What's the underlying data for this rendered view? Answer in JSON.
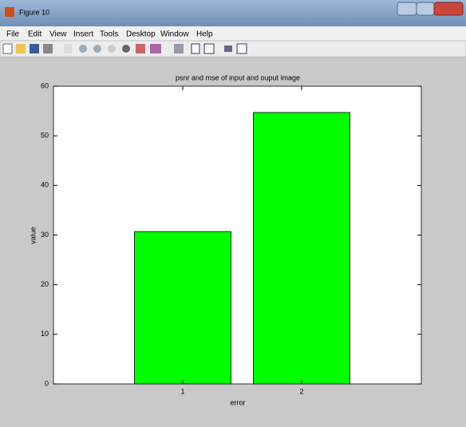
{
  "window": {
    "title": "Figure 10",
    "menu": [
      "File",
      "Edit",
      "View",
      "Insert",
      "Tools",
      "Desktop",
      "Window",
      "Help"
    ]
  },
  "chart_data": {
    "type": "bar",
    "title": "psnr and mse of input and ouput image",
    "x_label": "error",
    "y_label": "value",
    "categories": [
      "1",
      "2"
    ],
    "values": [
      30.7,
      54.7
    ],
    "color": "#00ff00",
    "ylim": [
      0,
      60
    ],
    "yticks": [
      0,
      10,
      20,
      30,
      40,
      50,
      60
    ],
    "grid": false
  }
}
